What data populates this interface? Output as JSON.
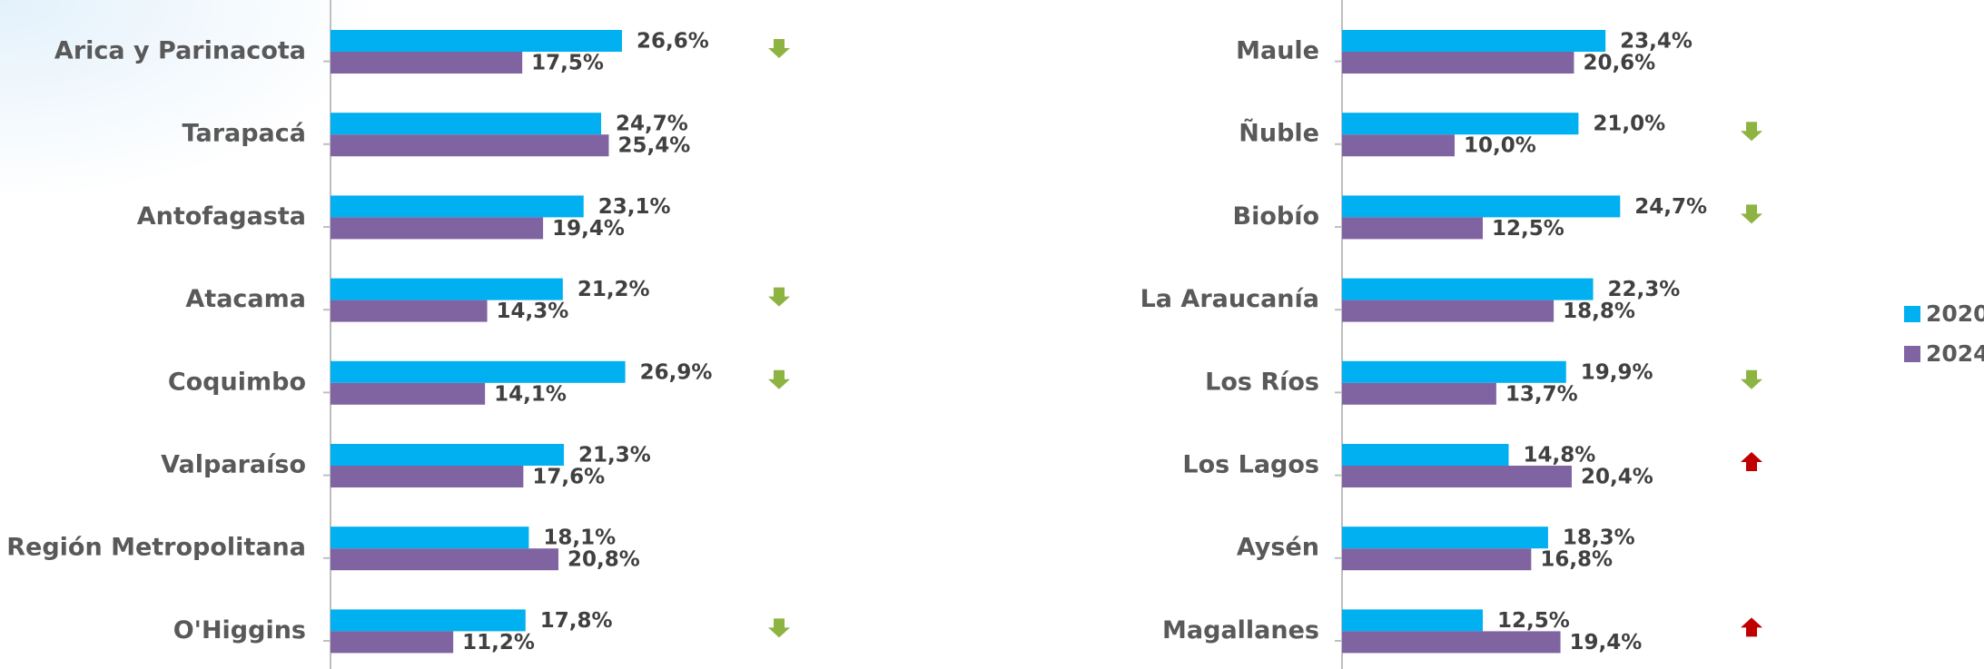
{
  "chart_data": [
    {
      "type": "bar",
      "orientation": "horizontal",
      "xlim": [
        0,
        30
      ],
      "categories": [
        "Arica y Parinacota",
        "Tarapacá",
        "Antofagasta",
        "Atacama",
        "Coquimbo",
        "Valparaíso",
        "Región Metropolitana",
        "O'Higgins"
      ],
      "series": [
        {
          "name": "2020",
          "color": "#00b0f0",
          "values": [
            26.6,
            24.7,
            23.1,
            21.2,
            26.9,
            21.3,
            18.1,
            17.8
          ],
          "value_labels": [
            "26,6%",
            "24,7%",
            "23,1%",
            "21,2%",
            "26,9%",
            "21,3%",
            "18,1%",
            "17,8%"
          ]
        },
        {
          "name": "2024",
          "color": "#8064a2",
          "values": [
            17.5,
            25.4,
            19.4,
            14.3,
            14.1,
            17.6,
            20.8,
            11.2
          ],
          "value_labels": [
            "17,5%",
            "25,4%",
            "19,4%",
            "14,3%",
            "14,1%",
            "17,6%",
            "20,8%",
            "11,2%"
          ]
        }
      ],
      "trend": [
        "down",
        null,
        null,
        "down",
        "down",
        null,
        null,
        "down"
      ]
    },
    {
      "type": "bar",
      "orientation": "horizontal",
      "xlim": [
        0,
        30
      ],
      "categories": [
        "Maule",
        "Ñuble",
        "Biobío",
        "La Araucanía",
        "Los Ríos",
        "Los Lagos",
        "Aysén",
        "Magallanes"
      ],
      "series": [
        {
          "color": "#00b0f0",
          "values": [
            23.4,
            21.0,
            24.7,
            22.3,
            19.9,
            14.8,
            18.3,
            12.5
          ],
          "value_labels": [
            "23,4%",
            "21,0%",
            "24,7%",
            "22,3%",
            "19,9%",
            "14,8%",
            "18,3%",
            "12,5%"
          ]
        },
        {
          "color": "#8064a2",
          "values": [
            20.6,
            10.0,
            12.5,
            18.8,
            13.7,
            20.4,
            16.8,
            19.4
          ],
          "value_labels": [
            "20,6%",
            "10,0%",
            "12,5%",
            "18,8%",
            "13,7%",
            "20,4%",
            "16,8%",
            "19,4%"
          ]
        }
      ],
      "trend": [
        null,
        "down",
        "down",
        null,
        "down",
        "up",
        null,
        "up"
      ]
    }
  ],
  "trend_colors": {
    "down": "#8db443",
    "up": "#c00000"
  },
  "legend": true
}
